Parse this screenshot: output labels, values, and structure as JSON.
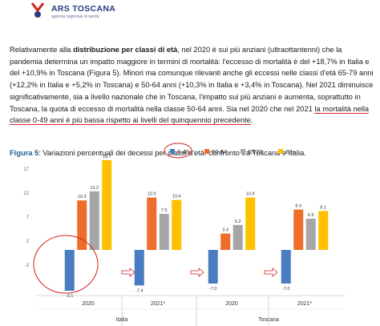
{
  "header": {
    "brand_name": "ARS TOSCANA",
    "brand_tagline": "agenzia regionale di sanità"
  },
  "paragraph": {
    "t1": "Relativamente alla ",
    "b1": "distribuzione per classi di età",
    "t2": ", nel 2020 è sui più anziani (ultraottantenni) che la pandemia determina un impatto maggiore in termini di mortalità: l'eccesso di mortalità è del +18,7% in Italia e del +10,9% in Toscana (Figura 5). Minori ma comunque rilevanti anche gli eccessi nelle classi d'età 65-79 anni (+12,2% in Italia e +5,2% in Toscana) e 50-64 anni (+10,3% in Italia e +3,4% in Toscana). Nel 2021 diminuisce significativamente, sia a livello nazionale che in Toscana, l'impatto sui più anziani e aumenta, soprattutto in Toscana, la quota di eccesso di mortalità nella classe 50-64 anni. Sia nel 2020 che nel 2021 ",
    "u1": "la mortalità nella classe 0-49 anni è più bassa rispetto ai livelli del quinquennio precedente",
    "t3": "."
  },
  "figure": {
    "label": "Figura 5",
    "caption": ": Variazioni percentuali dei decessi per classi d'età: confronto tra Toscana e Italia."
  },
  "colors": {
    "accent_red": "#d22222",
    "brand_blue": "#2a3b7a"
  },
  "chart_data": {
    "type": "bar",
    "series": [
      {
        "name": "0-49",
        "color": "#4a7cc2",
        "values": [
          -8.5,
          -7.4,
          -7.0,
          -7.0
        ]
      },
      {
        "name": "50-64",
        "color": "#ed6d2a",
        "values": [
          10.3,
          10.9,
          3.4,
          8.4
        ]
      },
      {
        "name": "65-79",
        "color": "#a6a6a6",
        "values": [
          12.2,
          7.5,
          5.2,
          6.5
        ]
      },
      {
        "name": "80+",
        "color": "#ffc000",
        "values": [
          18.7,
          10.4,
          10.9,
          8.1
        ]
      }
    ],
    "value_labels": [
      [
        "-8.5",
        "-7.4",
        "-7.0",
        "-7.0"
      ],
      [
        "10.3",
        "10.9",
        "3.4",
        "8.4"
      ],
      [
        "12.2",
        "7.5",
        "5.2",
        "6.5"
      ],
      [
        "18.7",
        "10.4",
        "10.9",
        "8.1"
      ]
    ],
    "categories": [
      "2020",
      "2021*",
      "2020",
      "2021*"
    ],
    "groups": [
      {
        "label": "Italia",
        "categories": [
          "2020",
          "2021*"
        ]
      },
      {
        "label": "Toscana",
        "categories": [
          "2020",
          "2021*"
        ]
      }
    ],
    "yticks": [
      "-3",
      "2",
      "7",
      "12",
      "17"
    ],
    "ylim": [
      -13,
      22
    ],
    "legend_position": "top"
  }
}
